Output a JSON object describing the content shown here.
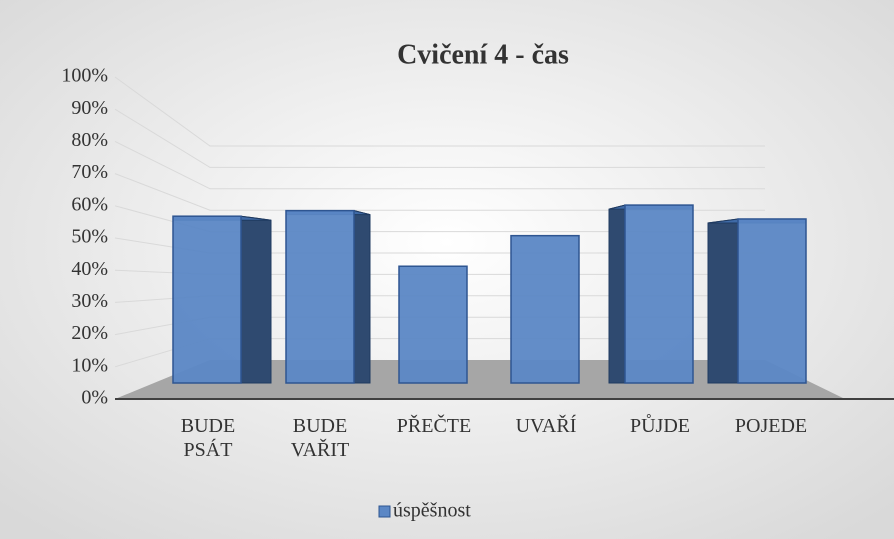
{
  "chart_data": {
    "type": "bar3d",
    "title": "Cvičení 4 - čas",
    "categories": [
      "BUDE PSÁT",
      "BUDE VAŘIT",
      "PŘEČTE",
      "UVAŘÍ",
      "PŮJDE",
      "POJEDE"
    ],
    "series": [
      {
        "name": "úspěšnost",
        "color": "#5b87c5",
        "values": [
          60,
          62,
          42,
          53,
          64,
          59
        ]
      }
    ],
    "ylim": [
      0,
      100
    ],
    "yticks": [
      {
        "value": 0,
        "label": "0%"
      },
      {
        "value": 10,
        "label": "10%"
      },
      {
        "value": 20,
        "label": "20%"
      },
      {
        "value": 30,
        "label": "30%"
      },
      {
        "value": 40,
        "label": "40%"
      },
      {
        "value": 50,
        "label": "50%"
      },
      {
        "value": 60,
        "label": "60%"
      },
      {
        "value": 70,
        "label": "70%"
      },
      {
        "value": 80,
        "label": "80%"
      },
      {
        "value": 90,
        "label": "90%"
      },
      {
        "value": 100,
        "label": "100%"
      }
    ],
    "grid": true,
    "legend": "bottom"
  }
}
